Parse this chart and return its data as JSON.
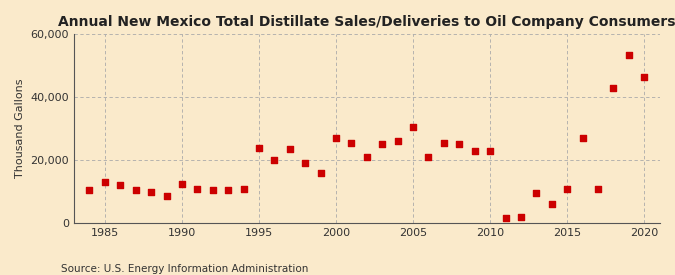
{
  "title": "Annual New Mexico Total Distillate Sales/Deliveries to Oil Company Consumers",
  "ylabel": "Thousand Gallons",
  "source": "Source: U.S. Energy Information Administration",
  "background_color": "#faeacb",
  "plot_background_color": "#faeacb",
  "marker_color": "#cc0000",
  "marker": "s",
  "marker_size": 16,
  "xlim": [
    1983,
    2021
  ],
  "ylim": [
    0,
    60000
  ],
  "yticks": [
    0,
    20000,
    40000,
    60000
  ],
  "xticks": [
    1985,
    1990,
    1995,
    2000,
    2005,
    2010,
    2015,
    2020
  ],
  "years": [
    1984,
    1985,
    1986,
    1987,
    1988,
    1989,
    1990,
    1991,
    1992,
    1993,
    1994,
    1995,
    1996,
    1997,
    1998,
    1999,
    2000,
    2001,
    2002,
    2003,
    2004,
    2005,
    2006,
    2007,
    2008,
    2009,
    2010,
    2011,
    2012,
    2013,
    2014,
    2015,
    2016,
    2017,
    2018,
    2019,
    2020
  ],
  "values": [
    10500,
    13000,
    12000,
    10500,
    10000,
    8500,
    12500,
    11000,
    10500,
    10500,
    11000,
    24000,
    20000,
    23500,
    19000,
    16000,
    27000,
    25500,
    21000,
    25000,
    26000,
    30500,
    21000,
    25500,
    25000,
    23000,
    23000,
    1500,
    2000,
    9500,
    6000,
    11000,
    27000,
    11000,
    43000,
    53500,
    46500
  ],
  "title_fontsize": 10,
  "ylabel_fontsize": 8,
  "source_fontsize": 7.5,
  "tick_fontsize": 8
}
